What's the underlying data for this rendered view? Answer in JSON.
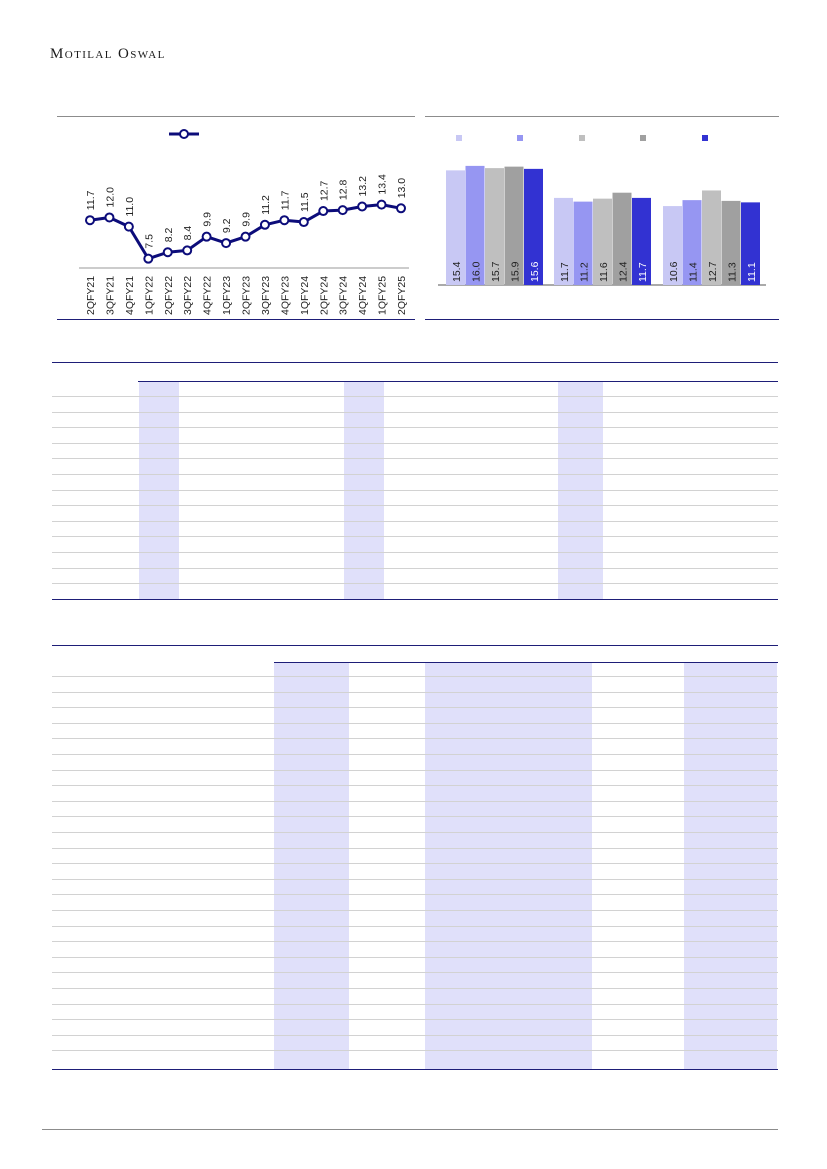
{
  "header": {
    "logo_text": "Motilal Oswal"
  },
  "charts": [
    {
      "type": "line",
      "categories": [
        "2QFY21",
        "3QFY21",
        "4QFY21",
        "1QFY22",
        "2QFY22",
        "3QFY22",
        "4QFY22",
        "1QFY23",
        "2QFY23",
        "3QFY23",
        "4QFY23",
        "1QFY24",
        "2QFY24",
        "3QFY24",
        "4QFY24",
        "1QFY25",
        "2QFY25"
      ],
      "values": [
        11.7,
        12.0,
        11.0,
        7.5,
        8.2,
        8.4,
        9.9,
        9.2,
        9.9,
        11.2,
        11.7,
        11.5,
        12.7,
        12.8,
        13.2,
        13.4,
        13.0
      ],
      "ylim": [
        2,
        15
      ],
      "legend": "top",
      "color": "#0c0c7a"
    },
    {
      "type": "bar",
      "groups": [
        {
          "values": [
            15.4,
            16.0,
            15.7,
            15.9,
            15.6
          ]
        },
        {
          "values": [
            11.7,
            11.2,
            11.6,
            12.4,
            11.7
          ]
        },
        {
          "values": [
            10.6,
            11.4,
            12.7,
            11.3,
            11.1
          ]
        }
      ],
      "series_colors": [
        "#c8c8f4",
        "#9696f2",
        "#bfbfbf",
        "#a0a0a0",
        "#3232d2"
      ],
      "ylim": [
        0,
        18
      ],
      "legend": "top"
    }
  ],
  "table1": {
    "row_count": 13,
    "highlight_columns": [
      [
        139,
        179
      ],
      [
        344,
        384
      ],
      [
        558,
        603
      ]
    ]
  },
  "table2": {
    "row_count": 25,
    "highlight_columns": [
      [
        274,
        349
      ],
      [
        425,
        592
      ],
      [
        684,
        777
      ]
    ]
  }
}
